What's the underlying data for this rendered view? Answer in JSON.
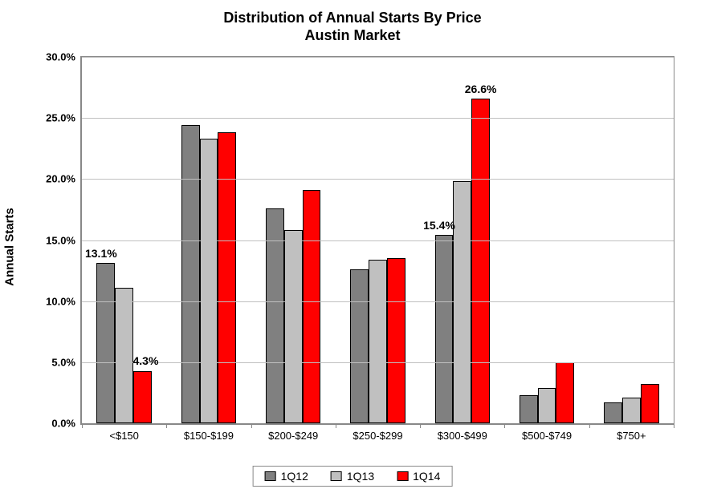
{
  "chart": {
    "type": "bar",
    "title_line1": "Distribution of Annual Starts By Price",
    "title_line2": "Austin Market",
    "title_fontsize": 18,
    "y_axis_label": "Annual Starts",
    "y_axis_label_fontsize": 15,
    "background_color": "#ffffff",
    "grid_color": "#c0c0c0",
    "axis_color": "#888888",
    "ylim_min": 0,
    "ylim_max": 30,
    "ytick_step": 5,
    "y_ticks": [
      "0.0%",
      "5.0%",
      "10.0%",
      "15.0%",
      "20.0%",
      "25.0%",
      "30.0%"
    ],
    "tick_fontsize": 13,
    "x_label_fontsize": 13,
    "categories": [
      "<$150",
      "$150-$199",
      "$200-$249",
      "$250-$299",
      "$300-$499",
      "$500-$749",
      "$750+"
    ],
    "series": [
      {
        "name": "1Q12",
        "color": "#808080",
        "values": [
          13.1,
          24.4,
          17.6,
          12.6,
          15.4,
          2.3,
          1.7
        ]
      },
      {
        "name": "1Q13",
        "color": "#c0c0c0",
        "values": [
          11.1,
          23.3,
          15.8,
          13.4,
          19.8,
          2.9,
          2.1
        ]
      },
      {
        "name": "1Q14",
        "color": "#ff0000",
        "values": [
          4.3,
          23.8,
          19.1,
          13.5,
          26.6,
          5.0,
          3.2
        ]
      }
    ],
    "bar_border_color": "#000000",
    "data_labels": [
      {
        "text": "13.1%",
        "category_index": 0,
        "series_index": 0,
        "offset_x": -6
      },
      {
        "text": "4.3%",
        "category_index": 0,
        "series_index": 2,
        "offset_x": 4
      },
      {
        "text": "15.4%",
        "category_index": 4,
        "series_index": 0,
        "offset_x": -6
      },
      {
        "text": "26.6%",
        "category_index": 4,
        "series_index": 2,
        "offset_x": 0
      }
    ],
    "data_label_fontsize": 14,
    "legend_fontsize": 14,
    "group_inner_gap_ratio": 0.0,
    "group_outer_gap_ratio": 0.35
  }
}
